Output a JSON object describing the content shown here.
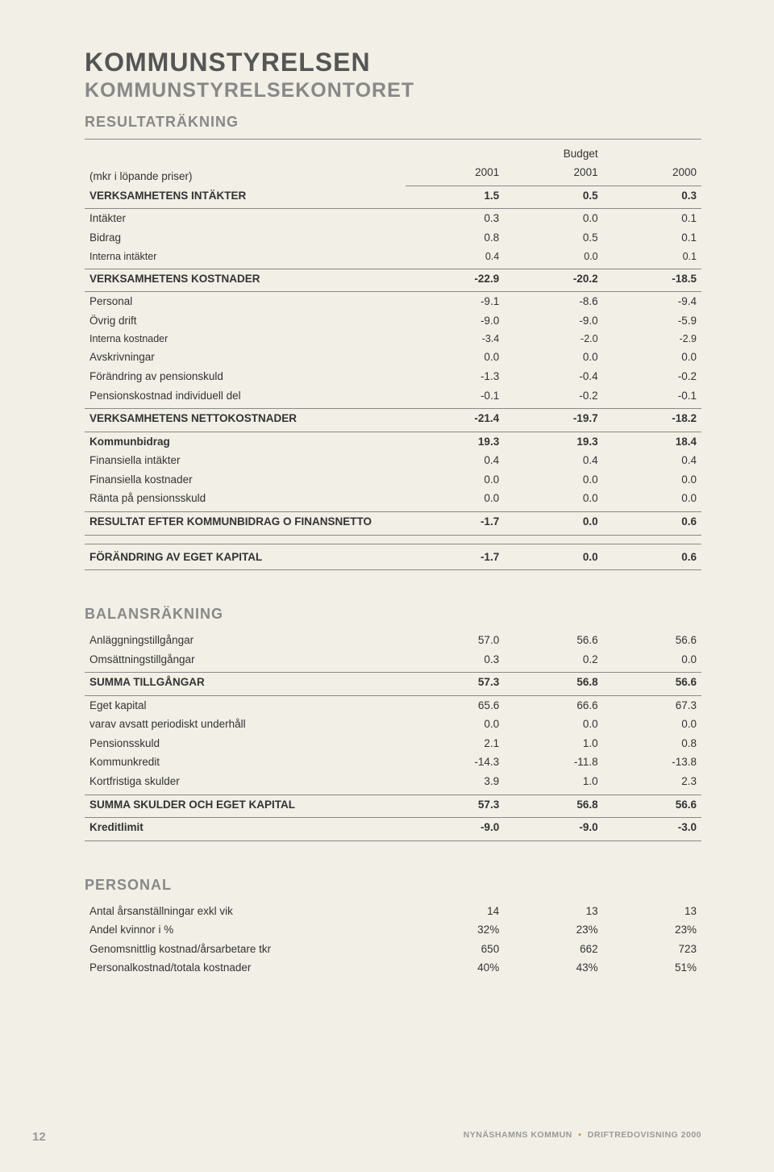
{
  "page": {
    "title_main": "KOMMUNSTYRELSEN",
    "title_sub": "KOMMUNSTYRELSEKONTORET",
    "section_result": "RESULTATRÄKNING",
    "section_balance": "BALANSRÄKNING",
    "section_personal": "PERSONAL",
    "header_note": "(mkr i löpande priser)",
    "budget_label": "Budget",
    "years": [
      "2001",
      "2001",
      "2000"
    ],
    "page_number": "12",
    "footer_org": "NYNÄSHAMNS KOMMUN",
    "footer_doc": "DRIFTREDOVISNING 2000"
  },
  "result": [
    {
      "label": "VERKSAMHETENS INTÄKTER",
      "v": [
        "1.5",
        "0.5",
        "0.3"
      ],
      "bold": true,
      "rule_above": false,
      "rule_below": true
    },
    {
      "label": "Intäkter",
      "v": [
        "0.3",
        "0.0",
        "0.1"
      ]
    },
    {
      "label": "Bidrag",
      "v": [
        "0.8",
        "0.5",
        "0.1"
      ]
    },
    {
      "label": "Interna intäkter",
      "v": [
        "0.4",
        "0.0",
        "0.1"
      ],
      "small": true,
      "rule_below": true
    },
    {
      "label": "VERKSAMHETENS KOSTNADER",
      "v": [
        "-22.9",
        "-20.2",
        "-18.5"
      ],
      "bold": true,
      "rule_below": true
    },
    {
      "label": "Personal",
      "v": [
        "-9.1",
        "-8.6",
        "-9.4"
      ]
    },
    {
      "label": "Övrig drift",
      "v": [
        "-9.0",
        "-9.0",
        "-5.9"
      ]
    },
    {
      "label": "Interna kostnader",
      "v": [
        "-3.4",
        "-2.0",
        "-2.9"
      ],
      "small": true
    },
    {
      "label": "Avskrivningar",
      "v": [
        "0.0",
        "0.0",
        "0.0"
      ]
    },
    {
      "label": "Förändring av pensionskuld",
      "v": [
        "-1.3",
        "-0.4",
        "-0.2"
      ]
    },
    {
      "label": "Pensionskostnad individuell del",
      "v": [
        "-0.1",
        "-0.2",
        "-0.1"
      ],
      "rule_below": true
    },
    {
      "label": "VERKSAMHETENS NETTOKOSTNADER",
      "v": [
        "-21.4",
        "-19.7",
        "-18.2"
      ],
      "bold": true,
      "rule_below": true
    },
    {
      "label": "Kommunbidrag",
      "v": [
        "19.3",
        "19.3",
        "18.4"
      ],
      "bold": true
    },
    {
      "label": "Finansiella intäkter",
      "v": [
        "0.4",
        "0.4",
        "0.4"
      ]
    },
    {
      "label": "Finansiella kostnader",
      "v": [
        "0.0",
        "0.0",
        "0.0"
      ]
    },
    {
      "label": "Ränta på pensionsskuld",
      "v": [
        "0.0",
        "0.0",
        "0.0"
      ],
      "rule_below": true
    },
    {
      "label": "RESULTAT EFTER KOMMUNBIDRAG O FINANSNETTO",
      "v": [
        "-1.7",
        "0.0",
        "0.6"
      ],
      "bold": true,
      "rule_below": true
    },
    {
      "spacer": true
    },
    {
      "label": "FÖRÄNDRING AV EGET KAPITAL",
      "v": [
        "-1.7",
        "0.0",
        "0.6"
      ],
      "bold": true,
      "rule_above": true,
      "rule_below": true
    }
  ],
  "balance": [
    {
      "label": "Anläggningstillgångar",
      "v": [
        "57.0",
        "56.6",
        "56.6"
      ]
    },
    {
      "label": "Omsättningstillgångar",
      "v": [
        "0.3",
        "0.2",
        "0.0"
      ],
      "rule_below": true
    },
    {
      "label": "SUMMA TILLGÅNGAR",
      "v": [
        "57.3",
        "56.8",
        "56.6"
      ],
      "bold": true,
      "rule_below": true
    },
    {
      "label": "Eget kapital",
      "v": [
        "65.6",
        "66.6",
        "67.3"
      ]
    },
    {
      "label": " varav avsatt periodiskt underhåll",
      "v": [
        "0.0",
        "0.0",
        "0.0"
      ]
    },
    {
      "label": "Pensionsskuld",
      "v": [
        "2.1",
        "1.0",
        "0.8"
      ]
    },
    {
      "label": "Kommunkredit",
      "v": [
        "-14.3",
        "-11.8",
        "-13.8"
      ]
    },
    {
      "label": "Kortfristiga skulder",
      "v": [
        "3.9",
        "1.0",
        "2.3"
      ],
      "rule_below": true
    },
    {
      "label": "SUMMA SKULDER OCH EGET KAPITAL",
      "v": [
        "57.3",
        "56.8",
        "56.6"
      ],
      "bold": true,
      "rule_below": true
    },
    {
      "label": "Kreditlimit",
      "v": [
        "-9.0",
        "-9.0",
        "-3.0"
      ],
      "bold": true,
      "rule_below": true
    }
  ],
  "personal": [
    {
      "label": "Antal årsanställningar exkl vik",
      "v": [
        "14",
        "13",
        "13"
      ]
    },
    {
      "label": "Andel kvinnor i %",
      "v": [
        "32%",
        "23%",
        "23%"
      ]
    },
    {
      "label": "Genomsnittlig kostnad/årsarbetare tkr",
      "v": [
        "650",
        "662",
        "723"
      ]
    },
    {
      "label": "Personalkostnad/totala kostnader",
      "v": [
        "40%",
        "43%",
        "51%"
      ]
    }
  ]
}
